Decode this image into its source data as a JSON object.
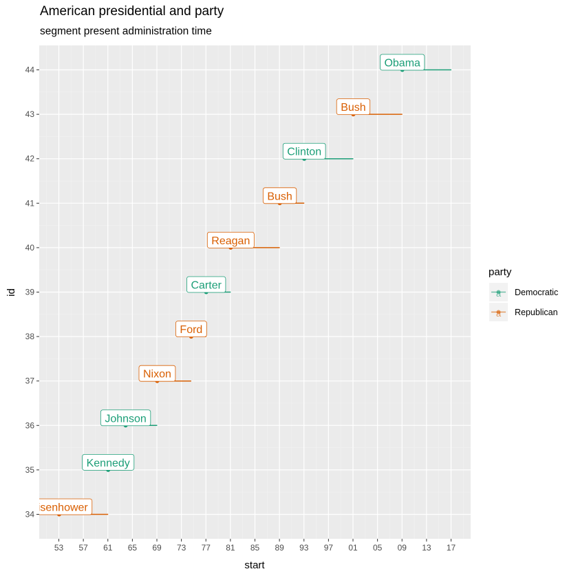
{
  "title": "American presidential and party",
  "subtitle": "segment present administration time",
  "chart_data": {
    "type": "segment",
    "xlabel": "start",
    "ylabel": "id",
    "x_ticks": [
      "53",
      "57",
      "61",
      "65",
      "69",
      "73",
      "77",
      "81",
      "85",
      "89",
      "93",
      "97",
      "01",
      "05",
      "09",
      "13",
      "17"
    ],
    "x_tick_years": [
      1953,
      1957,
      1961,
      1965,
      1969,
      1973,
      1977,
      1981,
      1985,
      1989,
      1993,
      1997,
      2001,
      2005,
      2009,
      2013,
      2017
    ],
    "y_ticks": [
      34,
      35,
      36,
      37,
      38,
      39,
      40,
      41,
      42,
      43,
      44
    ],
    "xlim": [
      1949.8,
      2020.2
    ],
    "ylim": [
      33.45,
      44.55
    ],
    "grid": true,
    "legend": {
      "title": "party",
      "position": "right",
      "entries": [
        {
          "name": "Democratic",
          "color": "#1b9e77",
          "glyph": "a"
        },
        {
          "name": "Republican",
          "color": "#d95f02",
          "glyph": "a"
        }
      ]
    },
    "presidents": [
      {
        "id": 34,
        "name": "Eisenhower",
        "start": 1953.05,
        "end": 1961.05,
        "party": "Republican"
      },
      {
        "id": 35,
        "name": "Kennedy",
        "start": 1961.05,
        "end": 1963.9,
        "party": "Democratic"
      },
      {
        "id": 36,
        "name": "Johnson",
        "start": 1963.9,
        "end": 1969.05,
        "party": "Democratic"
      },
      {
        "id": 37,
        "name": "Nixon",
        "start": 1969.05,
        "end": 1974.6,
        "party": "Republican"
      },
      {
        "id": 38,
        "name": "Ford",
        "start": 1974.6,
        "end": 1977.05,
        "party": "Republican"
      },
      {
        "id": 39,
        "name": "Carter",
        "start": 1977.05,
        "end": 1981.05,
        "party": "Democratic"
      },
      {
        "id": 40,
        "name": "Reagan",
        "start": 1981.05,
        "end": 1989.05,
        "party": "Republican"
      },
      {
        "id": 41,
        "name": "Bush",
        "start": 1989.05,
        "end": 1993.05,
        "party": "Republican"
      },
      {
        "id": 42,
        "name": "Clinton",
        "start": 1993.05,
        "end": 2001.05,
        "party": "Democratic"
      },
      {
        "id": 43,
        "name": "Bush",
        "start": 2001.05,
        "end": 2009.05,
        "party": "Republican"
      },
      {
        "id": 44,
        "name": "Obama",
        "start": 2009.05,
        "end": 2017.05,
        "party": "Democratic"
      }
    ]
  }
}
